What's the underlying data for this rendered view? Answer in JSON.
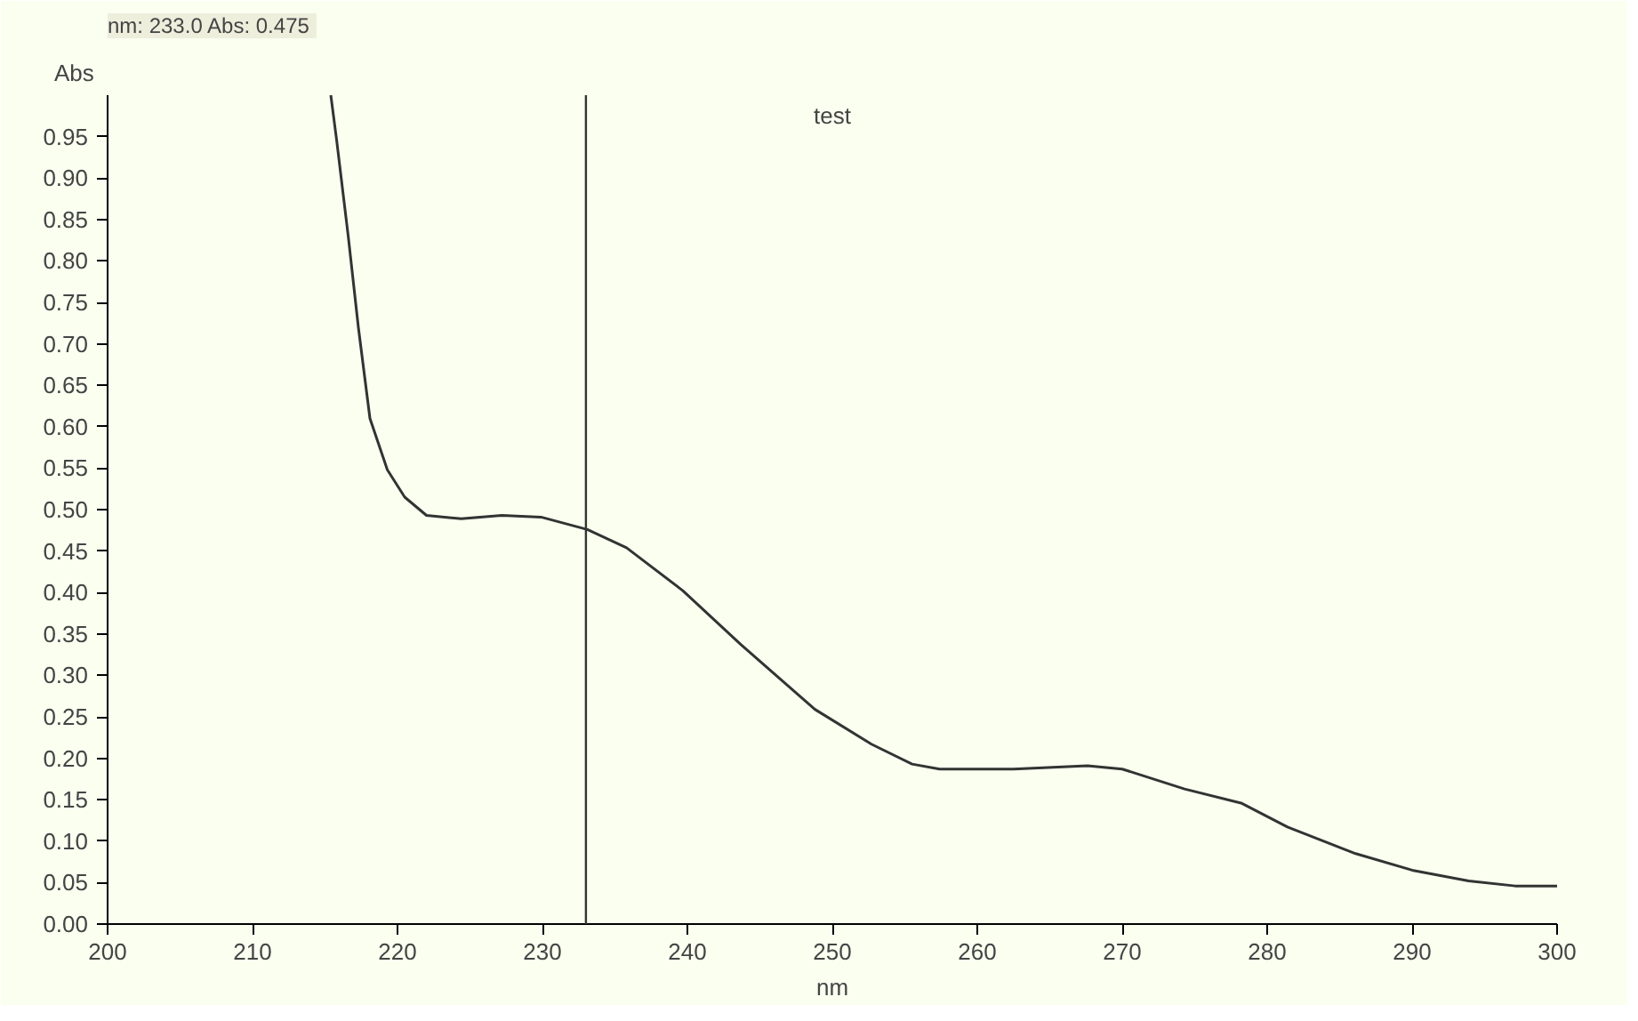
{
  "chart_data": {
    "type": "line",
    "title": "test",
    "xlabel": "nm",
    "ylabel": "Abs",
    "annotations": [
      "nm: 233.0  Abs: 0.475"
    ],
    "x": [
      215.4,
      215.8,
      216.6,
      217.3,
      218.1,
      219.3,
      220.5,
      222.0,
      224.4,
      227.2,
      229.9,
      233.1,
      235.8,
      239.7,
      243.7,
      248.8,
      252.7,
      255.5,
      257.4,
      262.5,
      267.6,
      270.0,
      274.3,
      278.2,
      281.4,
      286.1,
      290.0,
      293.9,
      297.1,
      300.0
    ],
    "series": [
      {
        "color": "#333333",
        "values": [
          1.0,
          0.946,
          0.83,
          0.72,
          0.61,
          0.548,
          0.515,
          0.493,
          0.489,
          0.493,
          0.491,
          0.476,
          0.454,
          0.402,
          0.337,
          0.259,
          0.217,
          0.193,
          0.187,
          0.187,
          0.191,
          0.187,
          0.163,
          0.146,
          0.117,
          0.085,
          0.065,
          0.052,
          0.046,
          0.046
        ]
      }
    ],
    "xlim": [
      200,
      300
    ],
    "xticks": [
      200,
      210,
      220,
      230,
      240,
      250,
      260,
      270,
      280,
      290,
      300
    ],
    "ylim": [
      0,
      1.0
    ],
    "yticks": [
      {
        "value": 0,
        "label": "0.00"
      },
      0.05,
      {
        "value": 0.1,
        "label": "0.10"
      },
      0.15,
      {
        "value": 0.2,
        "label": "0.20"
      },
      0.25,
      {
        "value": 0.3,
        "label": "0.30"
      },
      0.35,
      {
        "value": 0.4,
        "label": "0.40"
      },
      0.45,
      {
        "value": 0.5,
        "label": "0.50"
      },
      0.55,
      {
        "value": 0.6,
        "label": "0.60"
      },
      0.65,
      {
        "value": 0.7,
        "label": "0.70"
      },
      0.75,
      {
        "value": 0.8,
        "label": "0.80"
      },
      0.85,
      {
        "value": 0.9,
        "label": "0.90"
      },
      0.95
    ],
    "ref_lines": [
      {
        "axis": "x",
        "value": 233,
        "color": "#333333"
      }
    ],
    "grid": false
  }
}
